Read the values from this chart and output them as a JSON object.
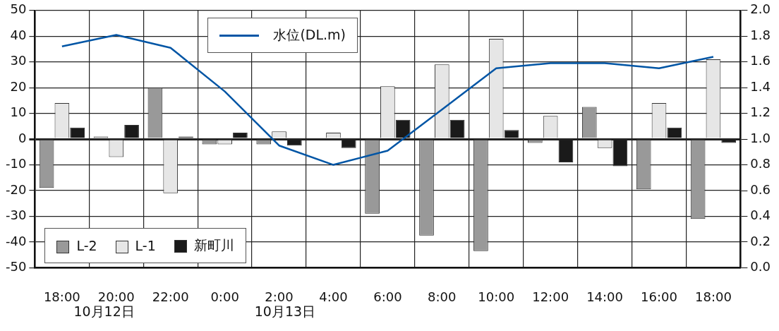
{
  "chart_data": {
    "type": "bar",
    "categories": [
      "18:00",
      "20:00",
      "22:00",
      "0:00",
      "2:00",
      "4:00",
      "6:00",
      "8:00",
      "10:00",
      "12:00",
      "14:00",
      "16:00",
      "18:00"
    ],
    "series": [
      {
        "name": "L-2",
        "color": "#999999",
        "values": [
          -19,
          1,
          20,
          -2,
          -2,
          null,
          -29,
          -37.5,
          -43.5,
          -1.5,
          12.5,
          -19.5,
          -31
        ]
      },
      {
        "name": "L-1",
        "color": "#e6e6e6",
        "values": [
          14,
          -7,
          -21,
          -2,
          3,
          2.5,
          20.5,
          29,
          39,
          9,
          -3.5,
          14,
          31
        ]
      },
      {
        "name": "新町川",
        "color": "#1a1a1a",
        "values": [
          4.5,
          5.5,
          1,
          2.5,
          -2.5,
          -3.5,
          7.5,
          7.5,
          3.5,
          -9,
          -10.5,
          4.5,
          -1.5
        ]
      },
      {
        "name": "水位(DL.m)",
        "type": "line",
        "axis": "y2",
        "color": "#0055a5",
        "values": [
          1.72,
          1.81,
          1.71,
          1.37,
          0.95,
          0.8,
          0.91,
          1.23,
          1.55,
          1.59,
          1.59,
          1.55,
          1.64
        ]
      }
    ],
    "ylim": [
      -50,
      50
    ],
    "yticks": [
      -50,
      -40,
      -30,
      -20,
      -10,
      0,
      10,
      20,
      30,
      40,
      50
    ],
    "y2lim": [
      0,
      2
    ],
    "y2ticks": [
      {
        "value": 0,
        "label": "0.0"
      },
      {
        "value": 0.2,
        "label": "0.2"
      },
      {
        "value": 0.4,
        "label": "0.4"
      },
      {
        "value": 0.6,
        "label": "0.6"
      },
      {
        "value": 0.8,
        "label": "0.8"
      },
      {
        "value": 1,
        "label": "1.0"
      },
      {
        "value": 1.2,
        "label": "1.2"
      },
      {
        "value": 1.4,
        "label": "1.4"
      },
      {
        "value": 1.6,
        "label": "1.6"
      },
      {
        "value": 1.8,
        "label": "1.8"
      },
      {
        "value": 2,
        "label": "2.0"
      }
    ],
    "grid": true,
    "legend": "bottom left",
    "annotations": [
      "10月12日",
      "10月13日"
    ]
  }
}
